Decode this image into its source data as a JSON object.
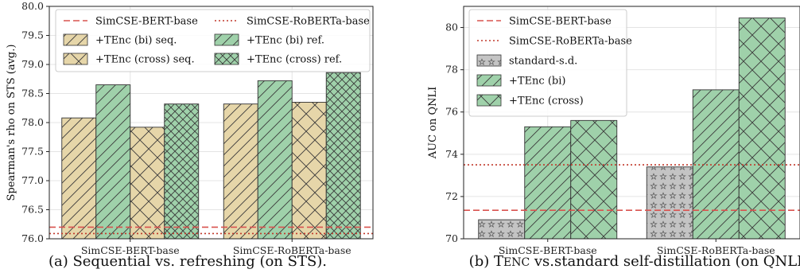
{
  "colors": {
    "beige": "#e6d6a9",
    "green": "#9fd1aa",
    "gray": "#c4c4c4",
    "ref_dashed": "#d9534f",
    "ref_dotted": "#c0392b"
  },
  "chart_data": [
    {
      "type": "bar",
      "ylabel": "Spearman's rho on STS (avg.)",
      "ylim": [
        76.0,
        80.0
      ],
      "yticks": [
        "76.0",
        "76.5",
        "77.0",
        "77.5",
        "78.0",
        "78.5",
        "79.0",
        "79.5",
        "80.0"
      ],
      "categories": [
        "SimCSE-BERT-base",
        "SimCSE-RoBERTa-base"
      ],
      "grid": true,
      "legend": "top",
      "series": [
        {
          "name": "+TEnc (bi) seq.",
          "values": [
            78.08,
            78.32
          ],
          "color": "beige",
          "hatch": "/"
        },
        {
          "name": "+TEnc (bi) ref.",
          "values": [
            78.65,
            78.72
          ],
          "color": "green",
          "hatch": "/"
        },
        {
          "name": "+TEnc (cross) seq.",
          "values": [
            77.92,
            78.35
          ],
          "color": "beige",
          "hatch": "x"
        },
        {
          "name": "+TEnc (cross) ref.",
          "values": [
            78.32,
            78.86
          ],
          "color": "green",
          "hatch": "xx"
        }
      ],
      "reference_lines": [
        {
          "name": "SimCSE-BERT-base",
          "value": 76.2,
          "style": "dashed"
        },
        {
          "name": "SimCSE-RoBERTa-base",
          "value": 76.09,
          "style": "dotted"
        }
      ],
      "caption": "(a) Sequential vs. refreshing (on STS)."
    },
    {
      "type": "bar",
      "ylabel": "AUC on QNLI",
      "ylim": [
        70,
        81
      ],
      "yticks": [
        "70",
        "72",
        "74",
        "76",
        "78",
        "80"
      ],
      "categories": [
        "SimCSE-BERT-base",
        "SimCSE-RoBERTa-base"
      ],
      "grid": true,
      "legend": "top-left",
      "series": [
        {
          "name": "standard-s.d.",
          "values": [
            70.9,
            73.4
          ],
          "color": "gray",
          "hatch": "star"
        },
        {
          "name": "+TEnc (bi)",
          "values": [
            75.3,
            77.05
          ],
          "color": "green",
          "hatch": "/"
        },
        {
          "name": "+TEnc (cross)",
          "values": [
            75.6,
            80.45
          ],
          "color": "green",
          "hatch": "x"
        }
      ],
      "reference_lines": [
        {
          "name": "SimCSE-BERT-base",
          "value": 71.35,
          "style": "dashed"
        },
        {
          "name": "SimCSE-RoBERTa-base",
          "value": 73.5,
          "style": "dotted"
        }
      ],
      "caption_pre": "(b) T",
      "caption_sc": "ENC",
      "caption_post": " vs.standard self-distillation (on QNLI)"
    }
  ]
}
